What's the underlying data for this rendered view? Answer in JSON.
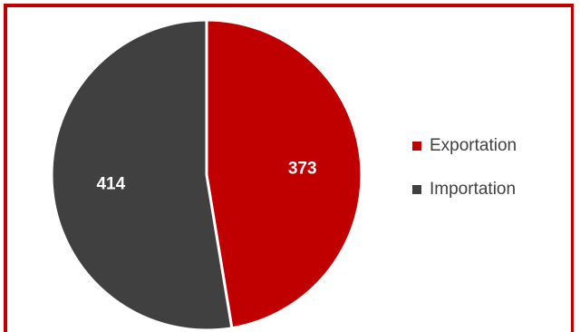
{
  "chart_data": {
    "type": "pie",
    "title": "",
    "slices": [
      {
        "label": "Exportation",
        "value": 373,
        "color": "#c00000"
      },
      {
        "label": "Importation",
        "value": 414,
        "color": "#404040"
      }
    ],
    "start": "top",
    "direction": "clockwise",
    "data_labels": [
      "373",
      "414"
    ],
    "legend": {
      "position": "right",
      "items": [
        "Exportation",
        "Importation"
      ]
    }
  },
  "frame": {
    "border_color": "#c00000"
  }
}
